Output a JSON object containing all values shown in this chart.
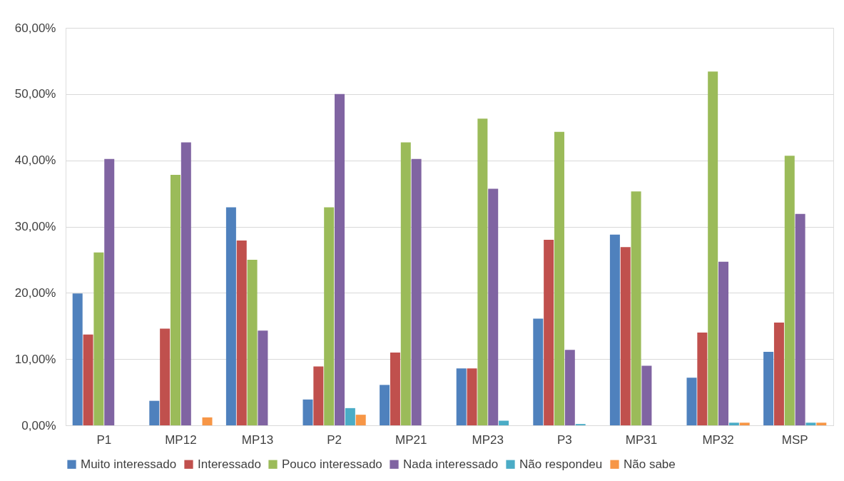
{
  "chart_data": {
    "type": "bar",
    "categories": [
      "P1",
      "MP12",
      "MP13",
      "P2",
      "MP21",
      "MP23",
      "P3",
      "MP31",
      "MP32",
      "MSP"
    ],
    "series": [
      {
        "name": "Muito interessado",
        "color": "#4f81bd",
        "values": [
          19.9,
          3.7,
          32.9,
          3.9,
          6.1,
          8.6,
          16.1,
          28.8,
          7.2,
          11.1
        ]
      },
      {
        "name": "Interessado",
        "color": "#c0504d",
        "values": [
          13.7,
          14.6,
          27.9,
          8.9,
          11.0,
          8.6,
          28.0,
          26.9,
          14.0,
          15.5
        ]
      },
      {
        "name": "Pouco interessado",
        "color": "#9bbb59",
        "values": [
          26.1,
          37.8,
          25.0,
          32.9,
          42.7,
          46.3,
          44.3,
          35.3,
          53.4,
          40.7
        ]
      },
      {
        "name": "Nada interessado",
        "color": "#8064a2",
        "values": [
          40.2,
          42.7,
          14.3,
          50.0,
          40.2,
          35.7,
          11.4,
          9.0,
          24.7,
          31.9
        ]
      },
      {
        "name": "Não respondeu",
        "color": "#4bacc6",
        "values": [
          null,
          null,
          null,
          2.6,
          null,
          0.7,
          0.2,
          null,
          0.4,
          0.4
        ]
      },
      {
        "name": "Não sabe",
        "color": "#f79646",
        "values": [
          null,
          1.2,
          null,
          1.6,
          null,
          null,
          null,
          null,
          0.4,
          0.4
        ]
      }
    ],
    "ylim": [
      0,
      60
    ],
    "yticks": [
      {
        "value": 0,
        "label": "0,00%"
      },
      {
        "value": 10,
        "label": "10,00%"
      },
      {
        "value": 20,
        "label": "20,00%"
      },
      {
        "value": 30,
        "label": "30,00%"
      },
      {
        "value": 40,
        "label": "40,00%"
      },
      {
        "value": 50,
        "label": "50,00%"
      },
      {
        "value": 60,
        "label": "60,00%"
      }
    ],
    "grid": "y",
    "legend": "bottom"
  }
}
